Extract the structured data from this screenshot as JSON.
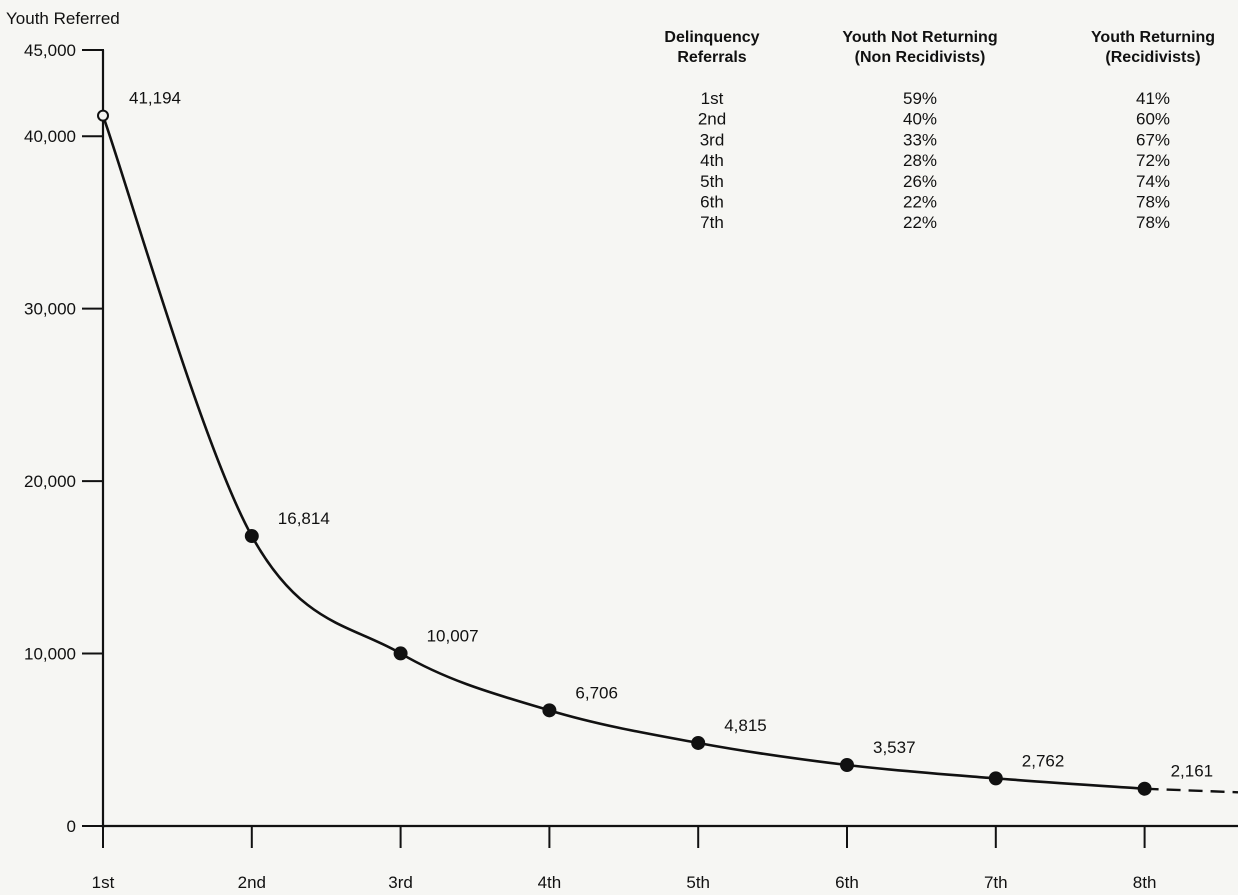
{
  "chart_data": {
    "type": "line",
    "ylabel": "Youth Referred",
    "ylim": [
      0,
      45000
    ],
    "y_ticks": [
      0,
      10000,
      20000,
      30000,
      40000,
      45000
    ],
    "y_tick_labels": [
      "0",
      "10,000",
      "20,000",
      "30,000",
      "40,000",
      "45,000"
    ],
    "categories": [
      "1st",
      "2nd",
      "3rd",
      "4th",
      "5th",
      "6th",
      "7th",
      "8th"
    ],
    "series": [
      {
        "values": [
          41194,
          16814,
          10007,
          6706,
          4815,
          3537,
          2762,
          2161
        ],
        "point_labels": [
          "41,194",
          "16,814",
          "10,007",
          "6,706",
          "4,815",
          "3,537",
          "2,762",
          "2,161"
        ],
        "extends_dashed_beyond_last": true
      }
    ],
    "color": "#111111"
  },
  "table": {
    "headers": [
      [
        "Delinquency",
        "Referrals"
      ],
      [
        "Youth Not Returning",
        "(Non Recidivists)"
      ],
      [
        "Youth Returning",
        "(Recidivists)"
      ]
    ],
    "rows": [
      [
        "1st",
        "59%",
        "41%"
      ],
      [
        "2nd",
        "40%",
        "60%"
      ],
      [
        "3rd",
        "33%",
        "67%"
      ],
      [
        "4th",
        "28%",
        "72%"
      ],
      [
        "5th",
        "26%",
        "74%"
      ],
      [
        "6th",
        "22%",
        "78%"
      ],
      [
        "7th",
        "22%",
        "78%"
      ]
    ]
  }
}
